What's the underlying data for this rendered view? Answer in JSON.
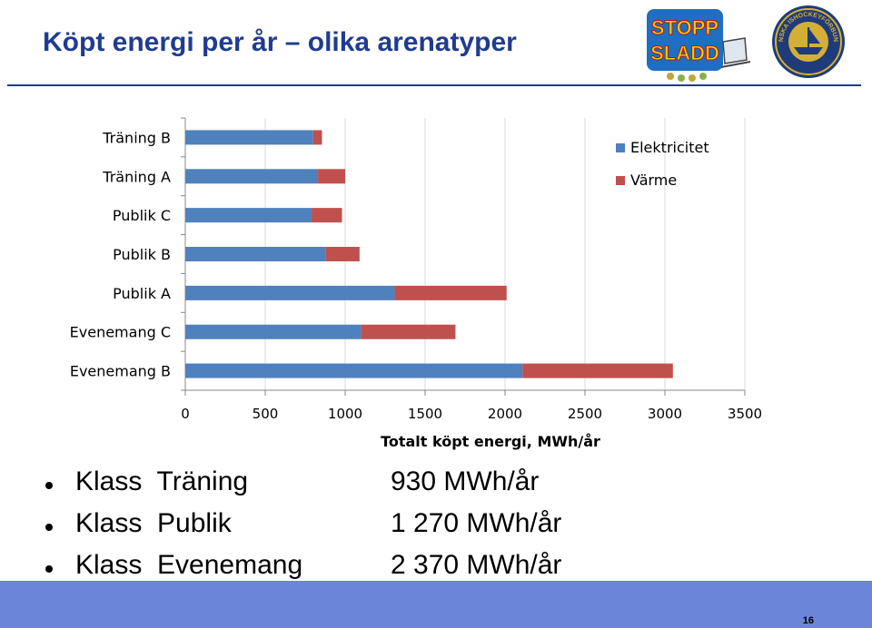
{
  "title": "Köpt energi per år – olika arenatyper",
  "logos": {
    "left_text_top": "STOPP",
    "left_text_bottom": "SLADD",
    "right_seal_text": "SVENSKA ISHOCKEYFÖRBUNDET"
  },
  "chart_data": {
    "type": "bar",
    "orientation": "horizontal",
    "stacked": true,
    "categories": [
      "Träning B",
      "Träning A",
      "Publik C",
      "Publik B",
      "Publik A",
      "Evenemang C",
      "Evenemang B"
    ],
    "series": [
      {
        "name": "Elektricitet",
        "color": "#4f81bd",
        "values": [
          800,
          830,
          790,
          880,
          1310,
          1100,
          2110
        ]
      },
      {
        "name": "Värme",
        "color": "#c0504d",
        "values": [
          55,
          170,
          190,
          210,
          700,
          590,
          940
        ]
      }
    ],
    "xlabel": "Totalt köpt energi, MWh/år",
    "xticks": [
      "0",
      "500",
      "1000",
      "1500",
      "2000",
      "2500",
      "3000",
      "3500"
    ],
    "xlim": [
      0,
      3500
    ],
    "legend_position": "top-right",
    "grid": true
  },
  "bullets": [
    {
      "label": "Klass  Träning",
      "value": "930 MWh/år"
    },
    {
      "label": "Klass  Publik",
      "value": "1 270 MWh/år"
    },
    {
      "label": "Klass  Evenemang",
      "value": "2 370 MWh/år"
    }
  ],
  "footer": {
    "page_number": "16"
  }
}
